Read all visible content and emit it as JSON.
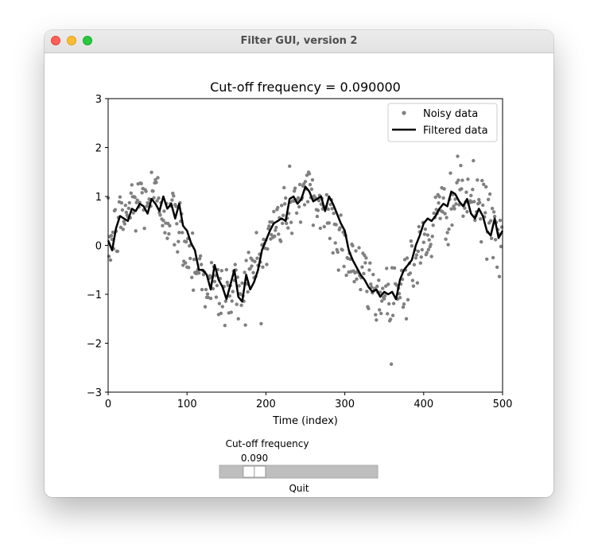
{
  "window": {
    "title": "Filter GUI, version 2"
  },
  "chart_data": {
    "type": "scatter",
    "title": "Cut-off frequency = 0.090000",
    "xlabel": "Time (index)",
    "ylabel": "",
    "xlim": [
      0,
      500
    ],
    "ylim": [
      -3,
      3
    ],
    "xticks": [
      0,
      100,
      200,
      300,
      400,
      500
    ],
    "yticks": [
      -3,
      -2,
      -1,
      0,
      1,
      2,
      3
    ],
    "legend": {
      "placement": "top-right",
      "entries": [
        "Noisy data",
        "Filtered data"
      ]
    },
    "series": [
      {
        "name": "Noisy data",
        "kind": "points",
        "color": "#808080",
        "underlying": "sine",
        "period": 200,
        "amplitude": 1.0,
        "noise_std": 0.35,
        "n": 500
      },
      {
        "name": "Filtered data",
        "kind": "line",
        "color": "#000000",
        "x": [
          0,
          5,
          10,
          15,
          20,
          25,
          30,
          35,
          40,
          45,
          50,
          55,
          60,
          65,
          70,
          75,
          80,
          85,
          90,
          95,
          100,
          105,
          110,
          115,
          120,
          125,
          130,
          135,
          140,
          145,
          150,
          155,
          160,
          165,
          170,
          175,
          180,
          185,
          190,
          195,
          200,
          205,
          210,
          215,
          220,
          225,
          230,
          235,
          240,
          245,
          250,
          255,
          260,
          265,
          270,
          275,
          280,
          285,
          290,
          295,
          300,
          305,
          310,
          315,
          320,
          325,
          330,
          335,
          340,
          345,
          350,
          355,
          360,
          365,
          370,
          375,
          380,
          385,
          390,
          395,
          400,
          405,
          410,
          415,
          420,
          425,
          430,
          435,
          440,
          445,
          450,
          455,
          460,
          465,
          470,
          475,
          480,
          485,
          490,
          495,
          500
        ],
        "y": [
          0.1,
          -0.1,
          0.35,
          0.6,
          0.55,
          0.5,
          0.75,
          0.7,
          0.85,
          0.8,
          0.65,
          0.95,
          0.85,
          0.7,
          1.0,
          0.75,
          0.85,
          0.55,
          0.85,
          0.4,
          0.3,
          0.05,
          -0.1,
          -0.5,
          -0.5,
          -0.6,
          -0.9,
          -0.4,
          -0.7,
          -0.85,
          -1.1,
          -0.8,
          -0.5,
          -1.05,
          -1.15,
          -0.6,
          -0.9,
          -0.75,
          -0.5,
          -0.1,
          0.1,
          0.3,
          0.45,
          0.5,
          0.55,
          0.5,
          0.95,
          1.0,
          0.85,
          0.95,
          1.2,
          1.1,
          0.9,
          0.95,
          1.0,
          0.7,
          1.0,
          0.85,
          0.65,
          0.45,
          0.3,
          -0.1,
          -0.3,
          -0.45,
          -0.6,
          -0.7,
          -0.85,
          -0.95,
          -0.9,
          -1.05,
          -0.95,
          -1.0,
          -0.95,
          -1.1,
          -0.7,
          -0.5,
          -0.4,
          -0.3,
          0.0,
          0.2,
          0.45,
          0.55,
          0.5,
          0.6,
          0.75,
          0.85,
          0.8,
          1.1,
          1.05,
          0.9,
          0.8,
          0.95,
          0.65,
          0.55,
          0.75,
          0.6,
          0.3,
          0.2,
          0.55,
          0.15,
          0.3
        ]
      }
    ]
  },
  "slider": {
    "label": "Cut-off frequency",
    "value_text": "0.090",
    "value": 0.09,
    "fraction": 0.15
  },
  "quit": {
    "label": "Quit"
  },
  "colors": {
    "slider_track": "#bebebe",
    "slider_handle": "#ffffff",
    "noisy": "#808080",
    "filtered": "#000000"
  }
}
